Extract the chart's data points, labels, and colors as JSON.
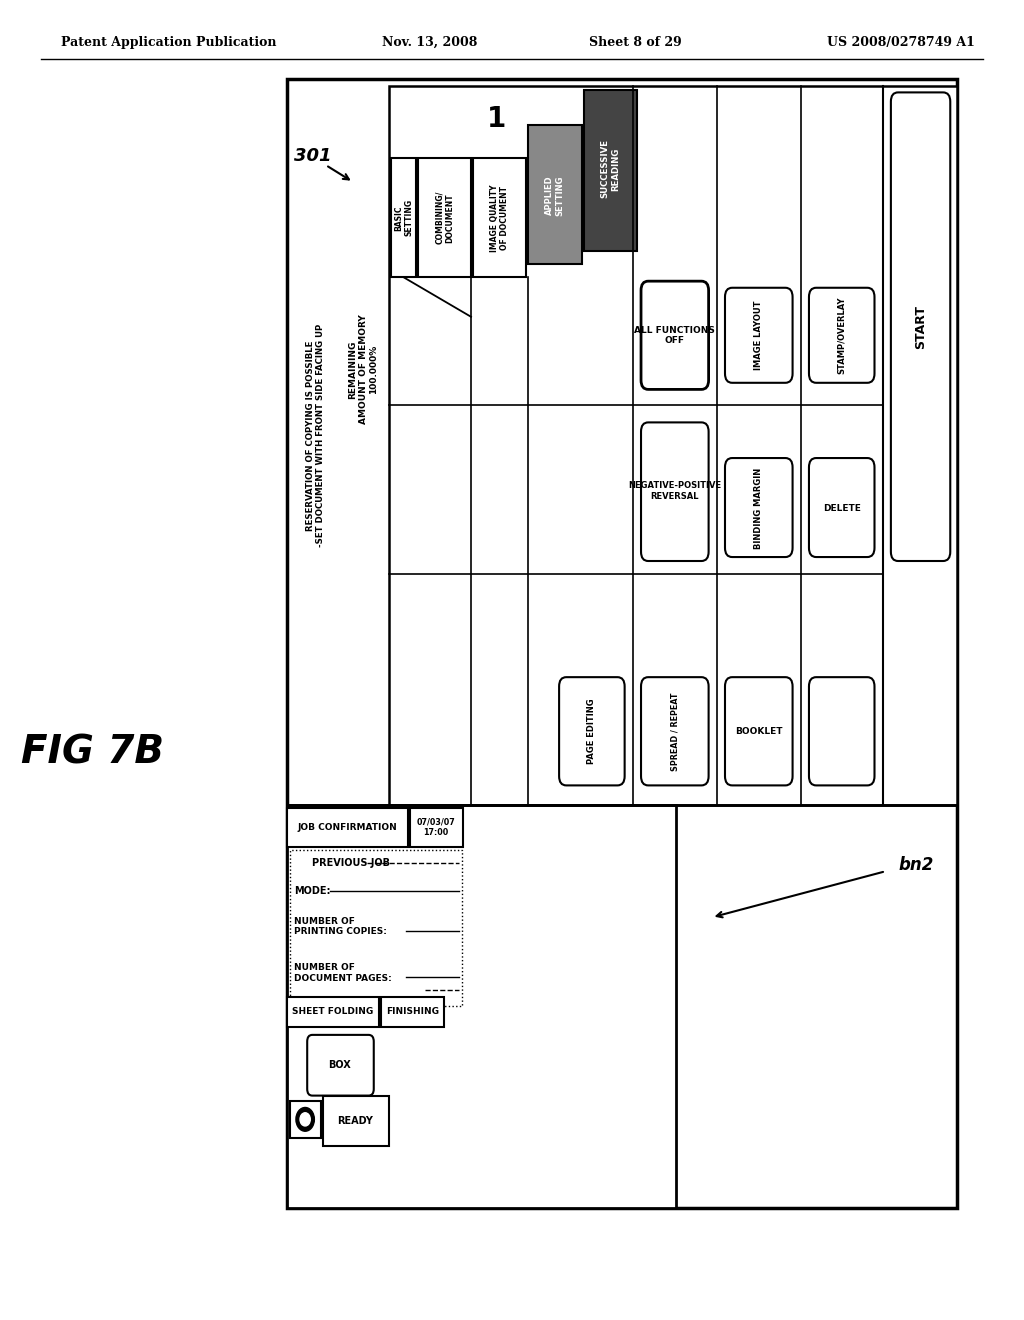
{
  "bg_color": "#ffffff",
  "header_text": "Patent Application Publication",
  "header_date": "Nov. 13, 2008",
  "header_sheet": "Sheet 8 of 29",
  "header_patent": "US 2008/0278749 A1",
  "fig_label": "FIG 7B",
  "label_301": "301",
  "label_bn2": "bn2"
}
